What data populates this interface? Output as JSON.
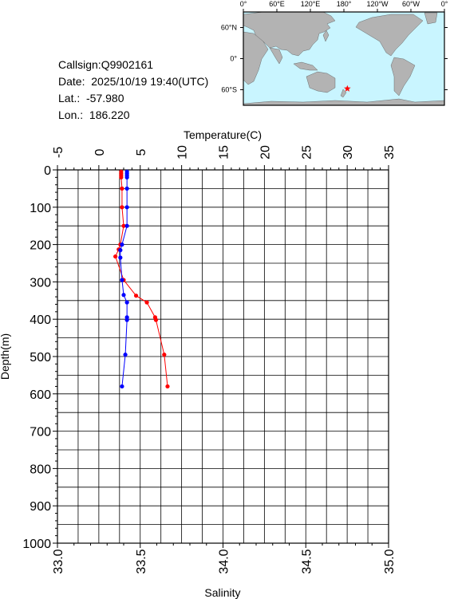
{
  "info": {
    "callsign": "Callsign:Q9902161",
    "date": "Date:  2025/10/19 19:40(UTC)",
    "lat": "Lat.:  -57.980",
    "lon": "Lon.:  186.220"
  },
  "map": {
    "lon_ticks": [
      "0°",
      "60°E",
      "120°E",
      "180°",
      "120°W",
      "60°W",
      "0°"
    ],
    "lat_ticks": [
      "60°N",
      "0°",
      "60°S"
    ],
    "ocean_color": "#c9f5ff",
    "land_color": "#b3b3b3",
    "marker_color": "#ff0000",
    "marker_symbol": "star",
    "station_lon": 186.22,
    "station_lat": -57.98
  },
  "chart_data": {
    "type": "line",
    "top_axis": {
      "label": "Temperature(C)",
      "range": [
        -5,
        35
      ],
      "ticks": [
        "-5",
        "0",
        "5",
        "10",
        "15",
        "20",
        "25",
        "30",
        "35"
      ]
    },
    "bottom_axis": {
      "label": "Salinity",
      "range": [
        33.0,
        35.0
      ],
      "ticks": [
        "33.0",
        "33.5",
        "34.0",
        "34.5",
        "35.0"
      ]
    },
    "y_axis": {
      "label": "Depth(m)",
      "range": [
        0,
        1000
      ],
      "inverted": true,
      "ticks": [
        "0",
        "100",
        "200",
        "300",
        "400",
        "500",
        "600",
        "700",
        "800",
        "900",
        "1000"
      ]
    },
    "grid": true,
    "series": [
      {
        "axis": "temperature",
        "color": "#ff0000",
        "points": [
          {
            "x": 2.7,
            "y": 5
          },
          {
            "x": 2.7,
            "y": 10
          },
          {
            "x": 2.7,
            "y": 15
          },
          {
            "x": 2.7,
            "y": 20
          },
          {
            "x": 2.8,
            "y": 50
          },
          {
            "x": 2.8,
            "y": 100
          },
          {
            "x": 3.0,
            "y": 150
          },
          {
            "x": 2.6,
            "y": 200
          },
          {
            "x": 2.4,
            "y": 213
          },
          {
            "x": 2.0,
            "y": 232
          },
          {
            "x": 3.0,
            "y": 295
          },
          {
            "x": 4.5,
            "y": 337
          },
          {
            "x": 5.8,
            "y": 355
          },
          {
            "x": 6.8,
            "y": 395
          },
          {
            "x": 6.9,
            "y": 402
          },
          {
            "x": 7.9,
            "y": 495
          },
          {
            "x": 8.3,
            "y": 580
          }
        ]
      },
      {
        "axis": "salinity",
        "color": "#0000ff",
        "points": [
          {
            "x": 33.42,
            "y": 5
          },
          {
            "x": 33.42,
            "y": 10
          },
          {
            "x": 33.42,
            "y": 15
          },
          {
            "x": 33.42,
            "y": 20
          },
          {
            "x": 33.42,
            "y": 50
          },
          {
            "x": 33.42,
            "y": 100
          },
          {
            "x": 33.42,
            "y": 150
          },
          {
            "x": 33.39,
            "y": 200
          },
          {
            "x": 33.38,
            "y": 215
          },
          {
            "x": 33.38,
            "y": 235
          },
          {
            "x": 33.39,
            "y": 295
          },
          {
            "x": 33.4,
            "y": 335
          },
          {
            "x": 33.42,
            "y": 355
          },
          {
            "x": 33.42,
            "y": 395
          },
          {
            "x": 33.42,
            "y": 402
          },
          {
            "x": 33.41,
            "y": 495
          },
          {
            "x": 33.39,
            "y": 580
          }
        ]
      }
    ]
  }
}
